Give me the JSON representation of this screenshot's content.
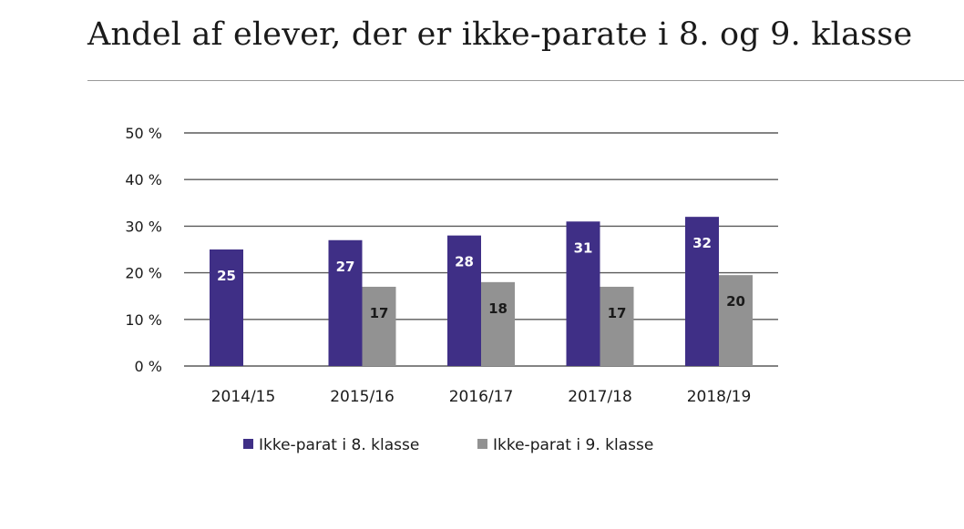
{
  "title": "Andel af elever, der er ikke-parate i 8. og 9. klasse",
  "colors": {
    "series_8": "#3f2f86",
    "series_9": "#929292",
    "grid": "#5a5a5a",
    "label_on_8": "#ffffff",
    "label_on_9": "#1a1a1a"
  },
  "chart_data": {
    "type": "bar",
    "title": "Andel af elever, der er ikke-parate i 8. og 9. klasse",
    "xlabel": "",
    "ylabel": "",
    "categories": [
      "2014/15",
      "2015/16",
      "2016/17",
      "2017/18",
      "2018/19"
    ],
    "series": [
      {
        "name": "Ikke-parat i 8. klasse",
        "values": [
          25,
          27,
          28,
          31,
          32
        ],
        "labels": [
          "25",
          "27",
          "28",
          "31",
          "32"
        ]
      },
      {
        "name": "Ikke-parat i 9. klasse",
        "values": [
          null,
          17,
          18,
          17,
          19.5
        ],
        "labels": [
          "",
          "17",
          "18",
          "17",
          "20"
        ]
      }
    ],
    "ylim": [
      0,
      50
    ],
    "yticks": [
      0,
      10,
      20,
      30,
      40,
      50
    ],
    "ytick_labels": [
      "0 %",
      "10 %",
      "20 %",
      "30 %",
      "40 %",
      "50 %"
    ],
    "grid": true,
    "legend": "bottom"
  }
}
